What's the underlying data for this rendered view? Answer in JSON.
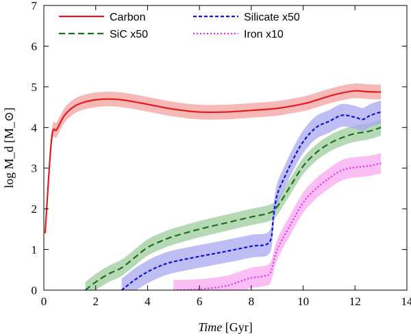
{
  "chart_data": {
    "type": "line",
    "title": "",
    "xlabel": {
      "italic": "Time",
      "rest": " [Gyr]"
    },
    "ylabel": "log M_d [M_⊙]",
    "xlim": [
      0,
      14
    ],
    "ylim": [
      0,
      7
    ],
    "xticks": [
      0,
      2,
      4,
      6,
      8,
      10,
      12,
      14
    ],
    "yticks": [
      0,
      1,
      2,
      3,
      4,
      5,
      6,
      7
    ],
    "xtick_labels": [
      "0",
      "2",
      "4",
      "6",
      "8",
      "10",
      "12",
      "14"
    ],
    "ytick_labels": [
      "0",
      "1",
      "2",
      "3",
      "4",
      "5",
      "6",
      "7"
    ],
    "grid": false,
    "legend_position": "top",
    "series": [
      {
        "name": "Carbon",
        "color": "#e31a1c",
        "band_color": "#f4a0a0",
        "dash": "solid",
        "x": [
          0.05,
          0.3,
          0.5,
          0.8,
          1.2,
          1.6,
          2.0,
          2.5,
          3.0,
          3.5,
          4.0,
          5.0,
          6.0,
          7.0,
          8.0,
          9.0,
          10.0,
          10.5,
          11.0,
          11.5,
          12.0,
          12.5,
          13.0
        ],
        "y": [
          1.4,
          3.72,
          3.95,
          4.3,
          4.53,
          4.63,
          4.68,
          4.7,
          4.68,
          4.63,
          4.57,
          4.45,
          4.38,
          4.38,
          4.42,
          4.47,
          4.58,
          4.67,
          4.77,
          4.85,
          4.9,
          4.88,
          4.87
        ],
        "band": 0.18
      },
      {
        "name": "SiC x50",
        "color": "#1b6e1b",
        "band_color": "#9ccc9c",
        "dash": "long-dash",
        "x": [
          1.6,
          2.0,
          2.5,
          3.0,
          3.5,
          4.0,
          4.5,
          5.0,
          6.0,
          7.0,
          8.0,
          8.7,
          9.0,
          9.5,
          10.0,
          10.5,
          11.0,
          11.5,
          12.0,
          12.5,
          13.0
        ],
        "y": [
          0.0,
          0.2,
          0.4,
          0.55,
          0.8,
          1.05,
          1.2,
          1.32,
          1.5,
          1.65,
          1.8,
          1.9,
          2.05,
          2.55,
          3.05,
          3.38,
          3.6,
          3.75,
          3.85,
          3.9,
          4.0
        ],
        "band": 0.2
      },
      {
        "name": "Silicate x50",
        "color": "#1010dd",
        "band_color": "#a8a8f0",
        "dash": "short-dash",
        "x": [
          3.0,
          3.5,
          4.0,
          4.5,
          5.0,
          6.0,
          7.0,
          8.0,
          8.7,
          8.85,
          9.0,
          9.3,
          9.6,
          10.0,
          10.5,
          11.0,
          11.5,
          12.0,
          12.3,
          12.6,
          13.0
        ],
        "y": [
          0.0,
          0.25,
          0.45,
          0.6,
          0.7,
          0.83,
          0.95,
          1.08,
          1.18,
          1.8,
          2.35,
          2.8,
          3.2,
          3.65,
          4.0,
          4.15,
          4.3,
          4.25,
          4.2,
          4.3,
          4.38
        ],
        "band": 0.28
      },
      {
        "name": "Iron x10",
        "color": "#ee22ee",
        "band_color": "#f8a8f0",
        "dash": "dotted",
        "x": [
          5.0,
          6.0,
          7.0,
          7.5,
          8.0,
          8.5,
          8.75,
          9.0,
          9.5,
          10.0,
          10.5,
          11.0,
          11.5,
          12.0,
          12.5,
          13.0
        ],
        "y": [
          0.0,
          0.02,
          0.1,
          0.2,
          0.3,
          0.35,
          0.45,
          1.0,
          1.6,
          2.15,
          2.5,
          2.75,
          2.95,
          3.02,
          3.05,
          3.12
        ],
        "band": 0.25
      }
    ]
  }
}
